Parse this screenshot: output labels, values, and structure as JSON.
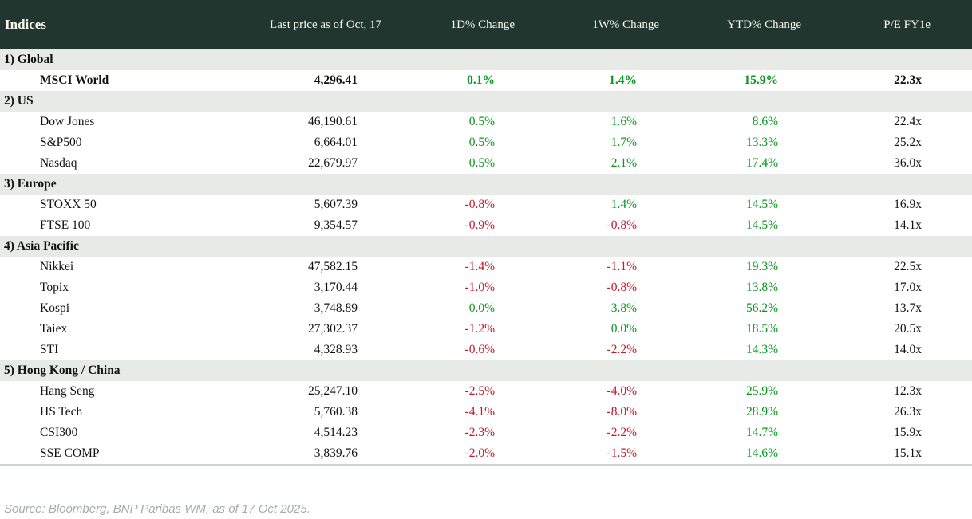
{
  "chart_data": {
    "type": "table",
    "title": "Indices",
    "columns": [
      "Indices",
      "Last price as of Oct, 17",
      "1D% Change",
      "1W% Change",
      "YTD% Change",
      "P/E FY1e"
    ],
    "groups": [
      {
        "label": "1) Global",
        "rows": [
          {
            "name": "MSCI World",
            "last_price": "4,296.41",
            "change_1d": "0.1%",
            "change_1w": "1.4%",
            "change_ytd": "15.9%",
            "pe_fy1e": "22.3x",
            "bold": true
          }
        ]
      },
      {
        "label": "2) US",
        "rows": [
          {
            "name": "Dow Jones",
            "last_price": "46,190.61",
            "change_1d": "0.5%",
            "change_1w": "1.6%",
            "change_ytd": "8.6%",
            "pe_fy1e": "22.4x"
          },
          {
            "name": "S&P500",
            "last_price": "6,664.01",
            "change_1d": "0.5%",
            "change_1w": "1.7%",
            "change_ytd": "13.3%",
            "pe_fy1e": "25.2x"
          },
          {
            "name": "Nasdaq",
            "last_price": "22,679.97",
            "change_1d": "0.5%",
            "change_1w": "2.1%",
            "change_ytd": "17.4%",
            "pe_fy1e": "36.0x"
          }
        ]
      },
      {
        "label": "3) Europe",
        "rows": [
          {
            "name": "STOXX 50",
            "last_price": "5,607.39",
            "change_1d": "-0.8%",
            "change_1w": "1.4%",
            "change_ytd": "14.5%",
            "pe_fy1e": "16.9x"
          },
          {
            "name": "FTSE 100",
            "last_price": "9,354.57",
            "change_1d": "-0.9%",
            "change_1w": "-0.8%",
            "change_ytd": "14.5%",
            "pe_fy1e": "14.1x"
          }
        ]
      },
      {
        "label": "4) Asia Pacific",
        "rows": [
          {
            "name": "Nikkei",
            "last_price": "47,582.15",
            "change_1d": "-1.4%",
            "change_1w": "-1.1%",
            "change_ytd": "19.3%",
            "pe_fy1e": "22.5x"
          },
          {
            "name": "Topix",
            "last_price": "3,170.44",
            "change_1d": "-1.0%",
            "change_1w": "-0.8%",
            "change_ytd": "13.8%",
            "pe_fy1e": "17.0x"
          },
          {
            "name": "Kospi",
            "last_price": "3,748.89",
            "change_1d": "0.0%",
            "change_1w": "3.8%",
            "change_ytd": "56.2%",
            "pe_fy1e": "13.7x"
          },
          {
            "name": "Taiex",
            "last_price": "27,302.37",
            "change_1d": "-1.2%",
            "change_1w": "0.0%",
            "change_ytd": "18.5%",
            "pe_fy1e": "20.5x"
          },
          {
            "name": "STI",
            "last_price": "4,328.93",
            "change_1d": "-0.6%",
            "change_1w": "-2.2%",
            "change_ytd": "14.3%",
            "pe_fy1e": "14.0x"
          }
        ]
      },
      {
        "label": "5) Hong Kong / China",
        "rows": [
          {
            "name": "Hang Seng",
            "last_price": "25,247.10",
            "change_1d": "-2.5%",
            "change_1w": "-4.0%",
            "change_ytd": "25.9%",
            "pe_fy1e": "12.3x"
          },
          {
            "name": "HS Tech",
            "last_price": "5,760.38",
            "change_1d": "-4.1%",
            "change_1w": "-8.0%",
            "change_ytd": "28.9%",
            "pe_fy1e": "26.3x"
          },
          {
            "name": "CSI300",
            "last_price": "4,514.23",
            "change_1d": "-2.3%",
            "change_1w": "-2.2%",
            "change_ytd": "14.7%",
            "pe_fy1e": "15.9x"
          },
          {
            "name": "SSE COMP",
            "last_price": "3,839.76",
            "change_1d": "-2.0%",
            "change_1w": "-1.5%",
            "change_ytd": "14.6%",
            "pe_fy1e": "15.1x"
          }
        ]
      }
    ],
    "source_note": "Source: Bloomberg, BNP Paribas WM, as of 17 Oct 2025."
  },
  "colors": {
    "header_bg": "#20362f",
    "header_text": "#f8f6ef",
    "positive": "#0a961e",
    "negative": "#c21a2b",
    "group_row_bg": "#e7eae7",
    "table_bottom_border": "#ccd5cf",
    "source_text": "#a3abb3"
  }
}
